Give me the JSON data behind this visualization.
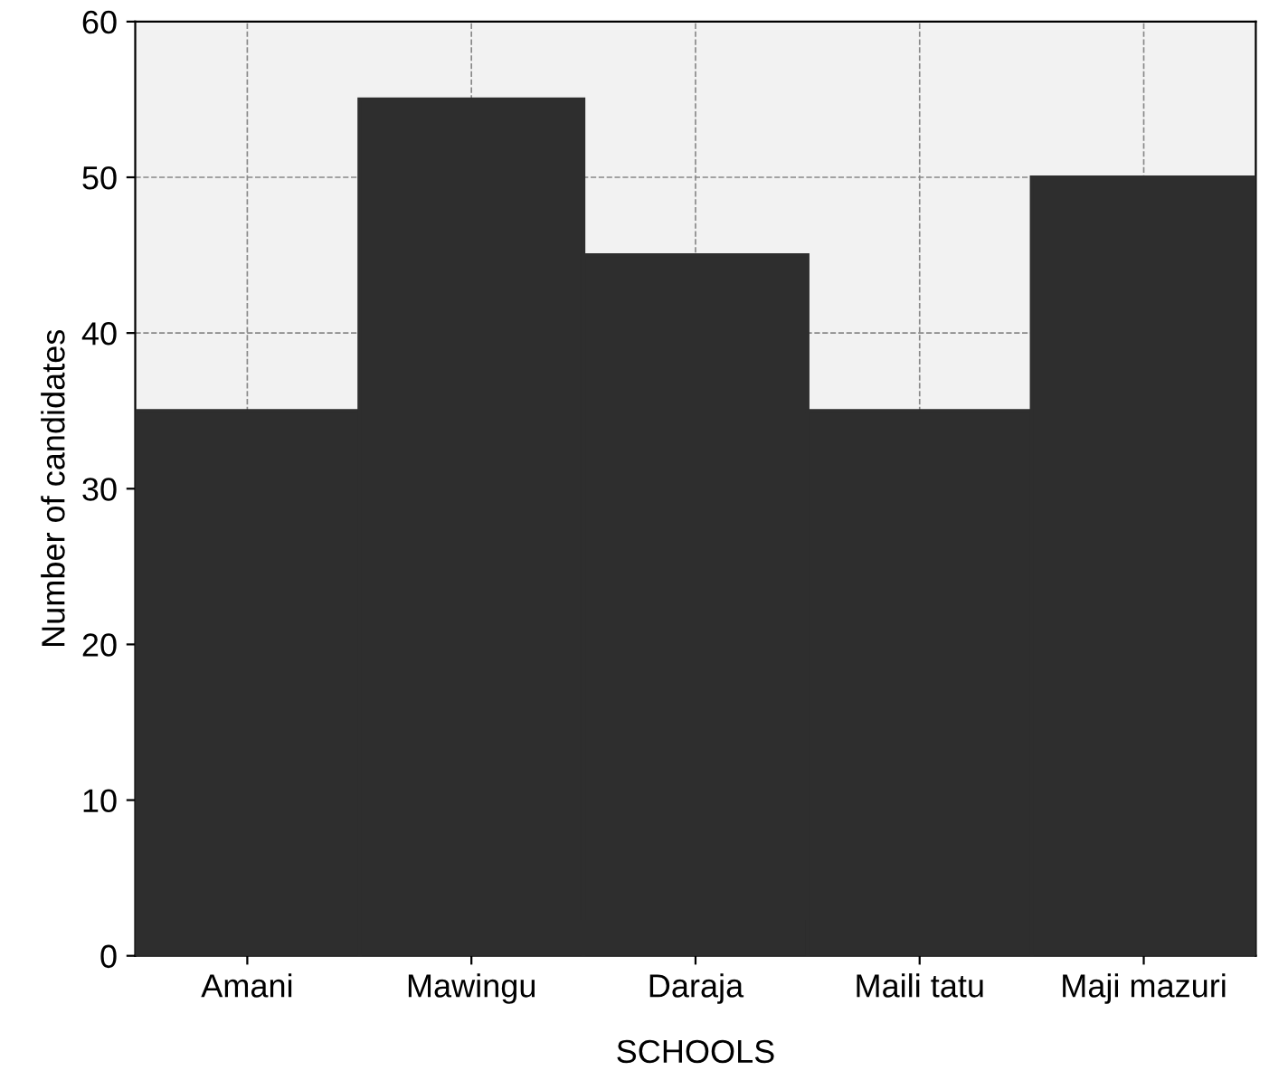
{
  "chart_data": {
    "type": "bar",
    "xlabel": "SCHOOLS",
    "ylabel": "Number of candidates",
    "categories": [
      "Amani",
      "Mawingu",
      "Daraja",
      "Maili tatu",
      "Maji mazuri"
    ],
    "values": [
      35,
      55,
      45,
      35,
      50
    ],
    "color": "#2e2e2e",
    "ylim": [
      0,
      60
    ],
    "yticks": [
      0,
      10,
      20,
      30,
      40,
      50,
      60
    ],
    "grid": true
  }
}
